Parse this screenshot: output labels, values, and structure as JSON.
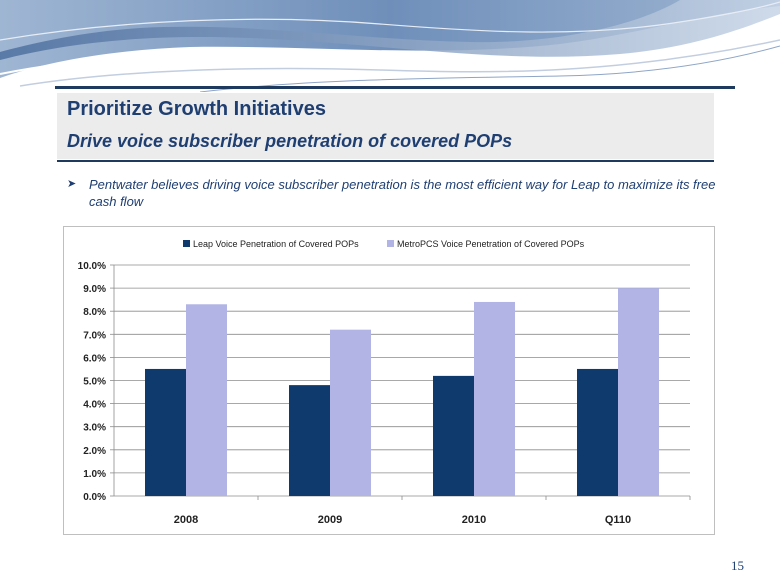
{
  "slide": {
    "title": "Prioritize Growth Initiatives",
    "subtitle": "Drive voice subscriber penetration of covered POPs",
    "bullet": "Pentwater believes driving voice subscriber penetration is the most efficient way for Leap to maximize its free cash flow",
    "bullet_icon": "arrow-bullet-icon",
    "page_number": "15"
  },
  "colors": {
    "title": "#1f3f72",
    "series1": "#0f3a6e",
    "series2": "#b1b4e5"
  },
  "chart_data": {
    "type": "bar",
    "title": "",
    "xlabel": "",
    "ylabel": "",
    "categories": [
      "2008",
      "2009",
      "2010",
      "Q110"
    ],
    "series": [
      {
        "name": "Leap Voice Penetration of Covered POPs",
        "values": [
          5.5,
          4.8,
          5.2,
          5.5
        ]
      },
      {
        "name": "MetroPCS Voice Penetration of Covered POPs",
        "values": [
          8.3,
          7.2,
          8.4,
          9.0
        ]
      }
    ],
    "ylim": [
      0,
      10
    ],
    "ytick_step": 1,
    "ytick_labels": [
      "0.0%",
      "1.0%",
      "2.0%",
      "3.0%",
      "4.0%",
      "5.0%",
      "6.0%",
      "7.0%",
      "8.0%",
      "9.0%",
      "10.0%"
    ],
    "grid": true,
    "legend": "top-center"
  }
}
